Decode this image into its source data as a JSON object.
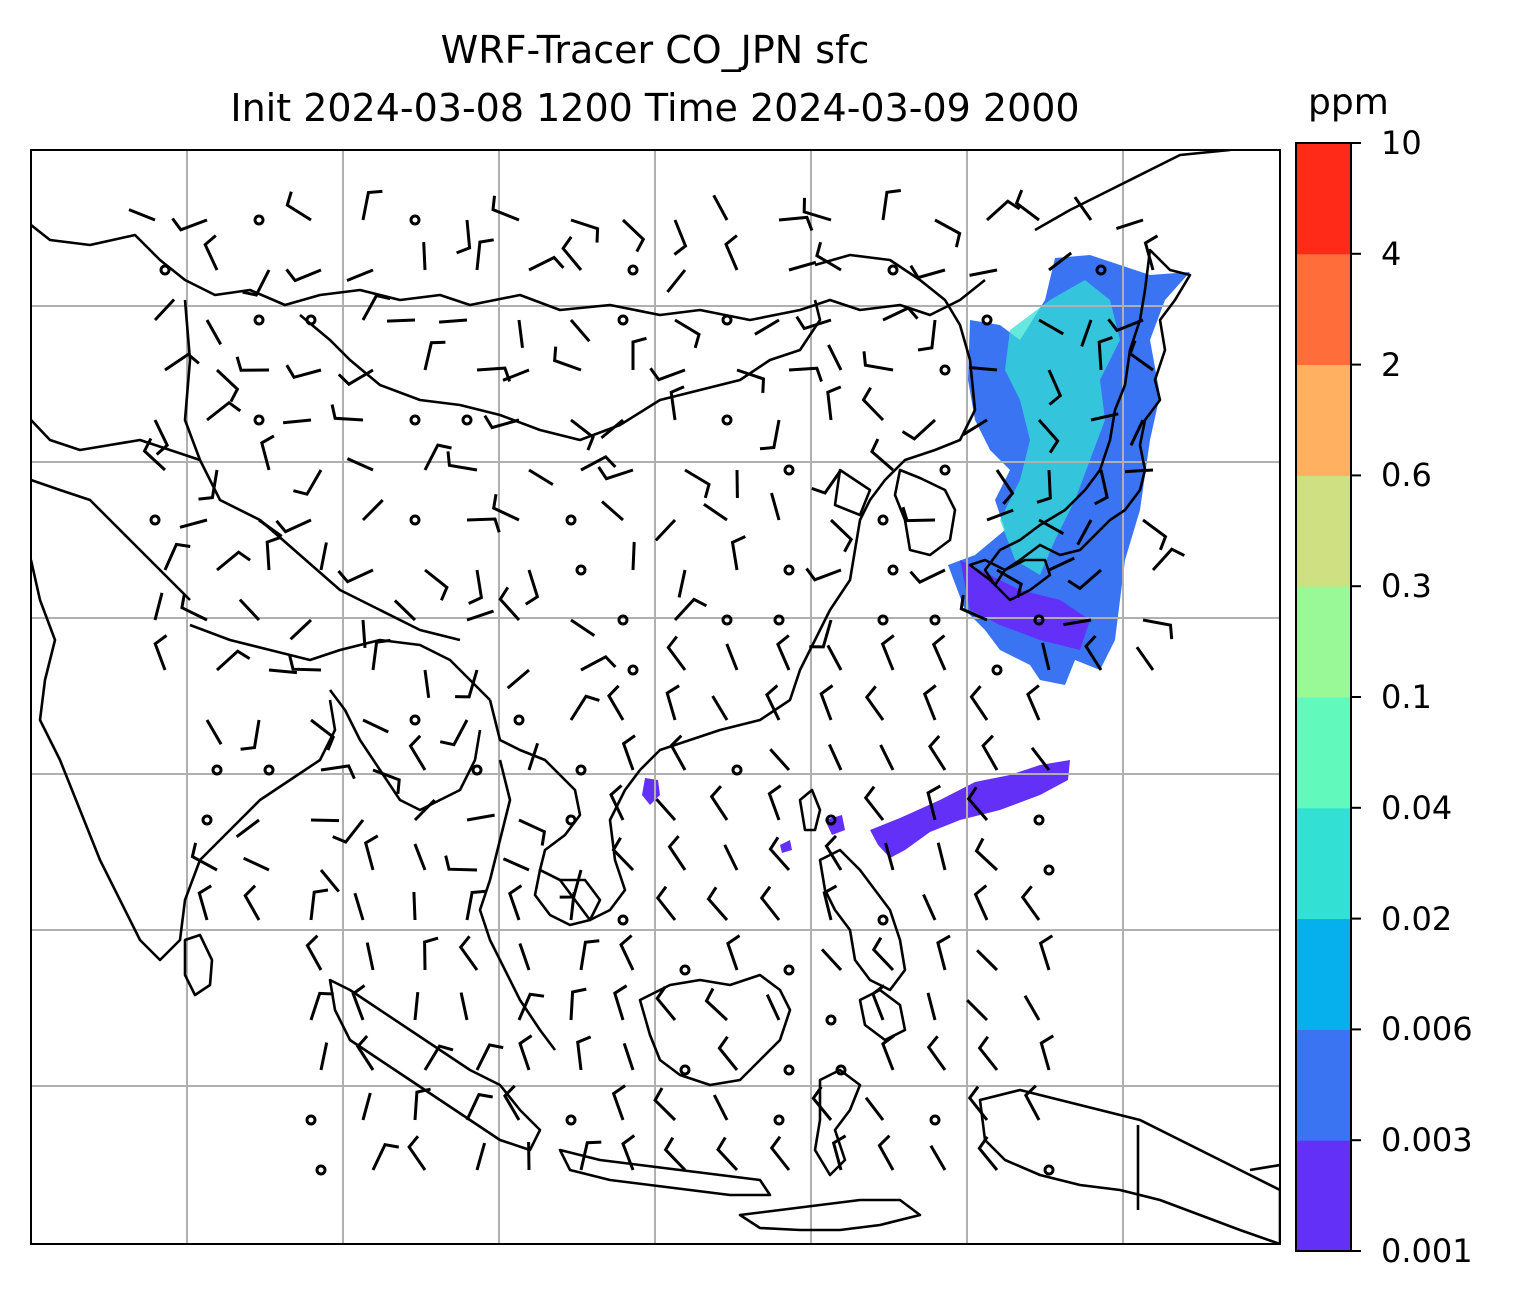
{
  "title": {
    "line1": "WRF-Tracer CO_JPN sfc",
    "line2": "Init 2024-03-08 1200 Time 2024-03-09 2000"
  },
  "colorbar": {
    "unit": "ppm",
    "tick_labels": [
      "0.001",
      "0.003",
      "0.006",
      "0.02",
      "0.04",
      "0.1",
      "0.3",
      "0.6",
      "2",
      "4",
      "10"
    ],
    "colors": [
      "#6230f7",
      "#3a74f2",
      "#06b0ec",
      "#33e0d4",
      "#62f9bc",
      "#98f996",
      "#cfe083",
      "#ffb060",
      "#ff6e3a",
      "#ff2a17"
    ]
  },
  "map": {
    "gridlines": true,
    "tracer_region_color": "#3d5bf0",
    "grid_color": "#b0b0b0",
    "coastline_color": "#000000",
    "features": [
      "coastlines",
      "country borders",
      "wind barbs",
      "tracer concentration shading"
    ]
  }
}
